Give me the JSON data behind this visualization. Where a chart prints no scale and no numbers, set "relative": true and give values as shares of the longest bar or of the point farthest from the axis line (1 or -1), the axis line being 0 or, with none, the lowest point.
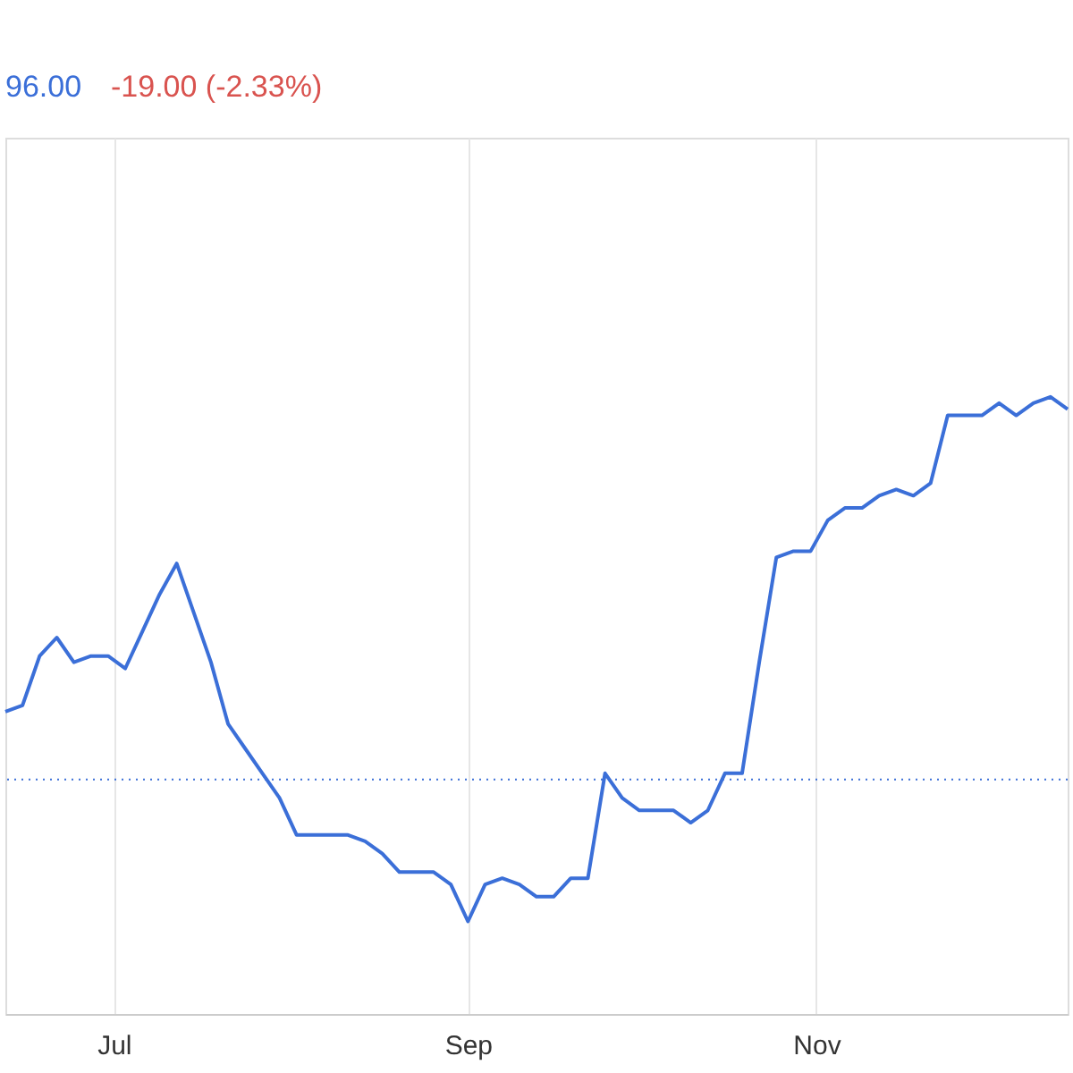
{
  "chart_data": {
    "type": "line",
    "relative": true,
    "x": [
      "--06-12",
      "--06-15",
      "--06-18",
      "--06-21",
      "--06-24",
      "--06-27",
      "--06-30",
      "--07-03",
      "--07-06",
      "--07-09",
      "--07-12",
      "--07-15",
      "--07-18",
      "--07-21",
      "--07-24",
      "--07-27",
      "--07-30",
      "--08-02",
      "--08-05",
      "--08-08",
      "--08-11",
      "--08-14",
      "--08-17",
      "--08-20",
      "--08-23",
      "--08-26",
      "--08-29",
      "--09-01",
      "--09-04",
      "--09-07",
      "--09-10",
      "--09-13",
      "--09-16",
      "--09-19",
      "--09-22",
      "--09-25",
      "--09-28",
      "--10-01",
      "--10-04",
      "--10-07",
      "--10-10",
      "--10-13",
      "--10-16",
      "--10-19",
      "--10-22",
      "--10-25",
      "--10-28",
      "--10-31",
      "--11-03",
      "--11-06",
      "--11-09",
      "--11-12",
      "--11-15",
      "--11-18",
      "--11-21",
      "--11-24",
      "--11-27",
      "--11-30",
      "--12-03",
      "--12-06",
      "--12-09",
      "--12-12",
      "--12-15"
    ],
    "series": [
      {
        "color": "#3b6fd8",
        "values": [
          0.49,
          0.5,
          0.58,
          0.61,
          0.57,
          0.58,
          0.58,
          0.56,
          0.62,
          0.68,
          0.73,
          0.65,
          0.57,
          0.47,
          0.43,
          0.39,
          0.35,
          0.29,
          0.29,
          0.29,
          0.29,
          0.28,
          0.26,
          0.23,
          0.23,
          0.23,
          0.21,
          0.15,
          0.21,
          0.22,
          0.21,
          0.19,
          0.19,
          0.22,
          0.22,
          0.39,
          0.35,
          0.33,
          0.33,
          0.33,
          0.31,
          0.33,
          0.39,
          0.39,
          0.57,
          0.74,
          0.75,
          0.75,
          0.8,
          0.82,
          0.82,
          0.84,
          0.85,
          0.84,
          0.86,
          0.97,
          0.97,
          0.97,
          0.99,
          0.97,
          0.99,
          1,
          0.98
        ]
      }
    ],
    "xlim": [
      "--06-12",
      "--12-15"
    ],
    "xticks": [
      {
        "value": "--07-01",
        "label": "Jul"
      },
      {
        "value": "--09-01",
        "label": "Sep"
      },
      {
        "value": "--11-01",
        "label": "Nov"
      }
    ],
    "ref_lines": [
      {
        "axis": "y",
        "value": 0.38,
        "color": "#3b6fd8",
        "line_style": "dotted"
      }
    ],
    "annotations": [
      "96.00",
      "-19.00 (-2.33%)"
    ],
    "grid": "x",
    "marker": "none",
    "line_style": "solid"
  }
}
